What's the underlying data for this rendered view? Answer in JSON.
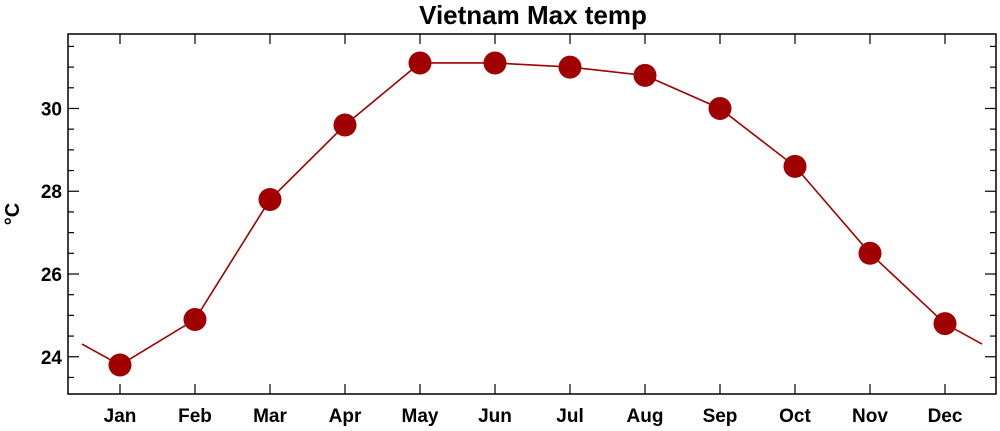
{
  "chart_data": {
    "type": "line",
    "title": "Vietnam Max temp",
    "xlabel": "",
    "ylabel": "°C",
    "categories": [
      "Jan",
      "Feb",
      "Mar",
      "Apr",
      "May",
      "Jun",
      "Jul",
      "Aug",
      "Sep",
      "Oct",
      "Nov",
      "Dec"
    ],
    "series": [
      {
        "values": [
          23.8,
          24.9,
          27.8,
          29.6,
          31.1,
          31.1,
          31.0,
          30.8,
          30.0,
          28.6,
          26.5,
          24.8
        ]
      }
    ],
    "ylim": [
      23.1,
      31.8
    ],
    "yticks": [
      24,
      26,
      28,
      30
    ],
    "ytick_labels": [
      "24",
      "26",
      "28",
      "30"
    ],
    "y_minor_step": 0.5,
    "grid": false,
    "legend": "none",
    "line_color": "#a00000",
    "marker_color": "#a00000"
  }
}
